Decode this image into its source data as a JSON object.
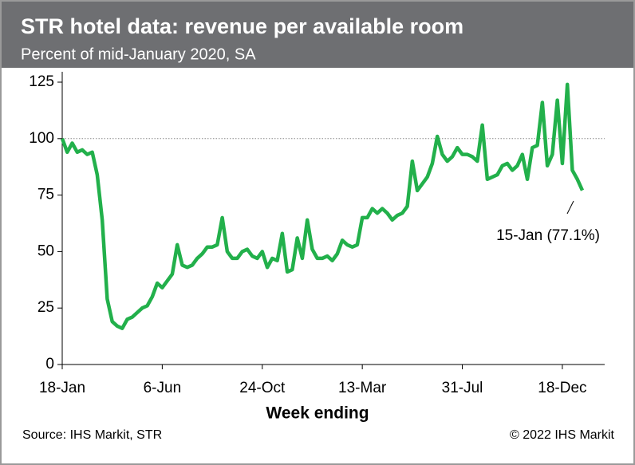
{
  "chart_data": {
    "type": "line",
    "title": "STR hotel data: revenue per available room",
    "subtitle": "Percent of mid-January 2020, SA",
    "xlabel": "Week ending",
    "source": "Source: IHS Markit, STR",
    "copyright": "© 2022 IHS Markit",
    "annotation": "15-Jan (77.1%)",
    "categories": [
      "18-Jan",
      null,
      null,
      null,
      null,
      null,
      null,
      null,
      null,
      null,
      null,
      null,
      null,
      null,
      null,
      null,
      null,
      null,
      null,
      null,
      "6-Jun",
      null,
      null,
      null,
      null,
      null,
      null,
      null,
      null,
      null,
      null,
      null,
      null,
      null,
      null,
      null,
      null,
      null,
      null,
      null,
      "24-Oct",
      null,
      null,
      null,
      null,
      null,
      null,
      null,
      null,
      null,
      null,
      null,
      null,
      null,
      null,
      null,
      null,
      null,
      null,
      null,
      "13-Mar",
      null,
      null,
      null,
      null,
      null,
      null,
      null,
      null,
      null,
      null,
      null,
      null,
      null,
      null,
      null,
      null,
      null,
      null,
      null,
      "31-Jul",
      null,
      null,
      null,
      null,
      null,
      null,
      null,
      null,
      null,
      null,
      null,
      null,
      null,
      null,
      null,
      null,
      null,
      null,
      null,
      "18-Dec",
      null,
      null,
      null,
      null
    ],
    "series": [
      {
        "name": "RevPAR",
        "color": "#22b04b",
        "values": [
          100,
          94,
          98,
          94,
          95,
          93,
          94,
          84,
          64,
          29,
          19,
          17,
          16,
          20,
          21,
          23,
          25,
          26,
          30,
          36,
          34,
          37,
          40,
          53,
          44,
          43,
          44,
          47,
          49,
          52,
          52,
          53,
          65,
          50,
          47,
          47,
          50,
          51,
          48,
          47,
          50,
          43,
          47,
          46,
          58,
          41,
          42,
          56,
          47,
          64,
          51,
          47,
          47,
          48,
          46,
          49,
          55,
          53,
          52,
          53,
          65,
          65,
          69,
          67,
          69,
          67,
          64,
          66,
          67,
          70,
          90,
          77,
          80,
          83,
          89,
          101,
          93,
          90,
          92,
          96,
          93,
          93,
          92,
          90,
          106,
          82,
          83,
          84,
          88,
          89,
          86,
          88,
          93,
          82,
          96,
          97,
          116,
          88,
          93,
          117,
          89,
          124,
          86,
          82,
          77.1
        ]
      }
    ],
    "ylim": [
      0,
      125
    ],
    "yticks": [
      0,
      25,
      50,
      75,
      100,
      125
    ],
    "reference_line": 100
  }
}
